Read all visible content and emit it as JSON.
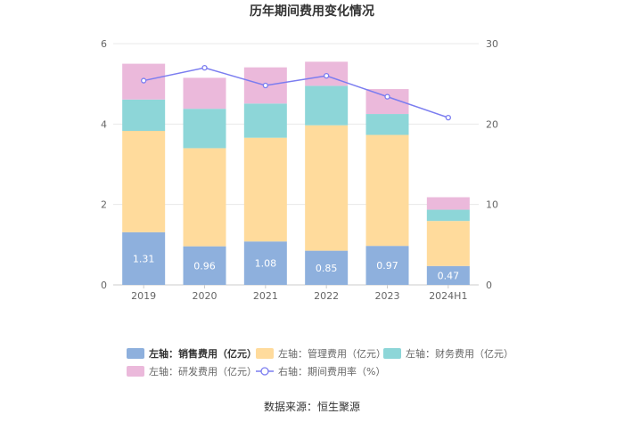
{
  "chart_data": {
    "type": "bar",
    "title": "历年期间费用变化情况",
    "categories": [
      "2019",
      "2020",
      "2021",
      "2022",
      "2023",
      "2024H1"
    ],
    "stacked": true,
    "left_axis": {
      "min": 0,
      "max": 6,
      "ticks": [
        "0",
        "2",
        "4",
        "6"
      ]
    },
    "right_axis": {
      "min": 0,
      "max": 30,
      "ticks": [
        "0",
        "10",
        "20",
        "30"
      ]
    },
    "series": [
      {
        "name": "销售费用（亿元）",
        "axis_label": "左轴：",
        "axis": "left",
        "color": "#8eb0dd",
        "values": [
          1.31,
          0.96,
          1.08,
          0.85,
          0.97,
          0.47
        ],
        "labels": [
          "1.31",
          "0.96",
          "1.08",
          "0.85",
          "0.97",
          "0.47"
        ]
      },
      {
        "name": "管理费用（亿元）",
        "axis_label": "左轴：",
        "axis": "left",
        "color": "#ffdb9c",
        "values": [
          2.52,
          2.44,
          2.58,
          3.12,
          2.76,
          1.12
        ]
      },
      {
        "name": "财务费用（亿元）",
        "axis_label": "左轴：",
        "axis": "left",
        "color": "#8dd6d8",
        "values": [
          0.78,
          0.98,
          0.85,
          0.98,
          0.52,
          0.28
        ]
      },
      {
        "name": "研发费用（亿元）",
        "axis_label": "左轴：",
        "axis": "left",
        "color": "#ebb9db",
        "values": [
          0.89,
          0.77,
          0.9,
          0.6,
          0.62,
          0.31
        ]
      },
      {
        "name": "期间费用率（%）",
        "axis_label": "右轴：",
        "axis": "right",
        "type": "line",
        "color": "#7b7df0",
        "values": [
          25.4,
          27.0,
          24.8,
          26.0,
          23.4,
          20.8
        ]
      }
    ],
    "legend": "bottom",
    "grid": true
  },
  "source": "数据来源：恒生聚源"
}
